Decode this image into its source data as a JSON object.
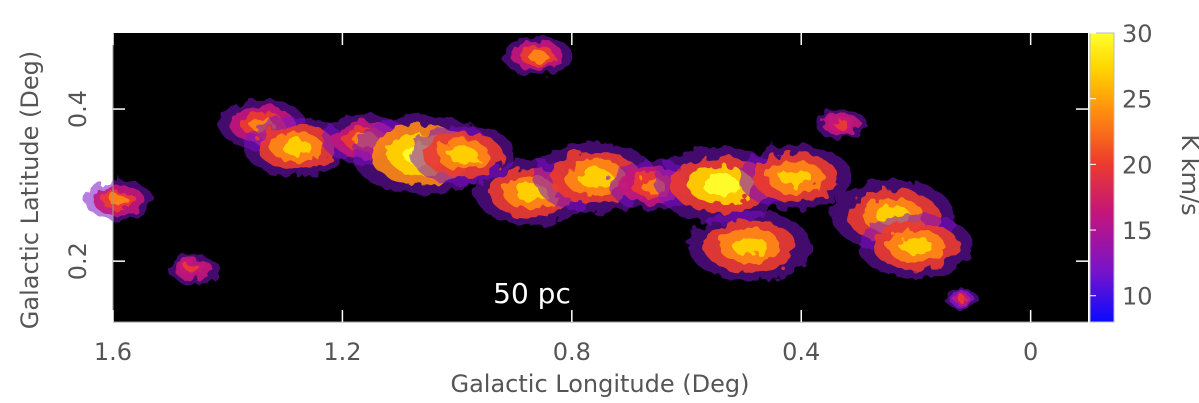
{
  "chart_data": {
    "type": "heatmap",
    "title": "",
    "xlabel": "Galactic Longitude (Deg)",
    "ylabel": "Galactic Latitude (Deg)",
    "xlim": [
      1.6,
      -0.1
    ],
    "ylim": [
      0.12,
      0.5
    ],
    "x_ticks": [
      1.6,
      1.2,
      0.8,
      0.4,
      0
    ],
    "x_tick_labels": [
      "1.6",
      "1.2",
      "0.8",
      "0.4",
      "0"
    ],
    "y_ticks": [
      0.2,
      0.4
    ],
    "y_tick_labels": [
      "0.2",
      "0.4"
    ],
    "colorbar": {
      "label": "K km/s",
      "range": [
        8,
        30
      ],
      "ticks": [
        10,
        15,
        20,
        25,
        30
      ],
      "tick_labels": [
        "10",
        "15",
        "20",
        "25",
        "30"
      ],
      "colormap": [
        "#0a0aff",
        "#7a14c8",
        "#c4157a",
        "#ec3c2c",
        "#ff8a10",
        "#ffd600",
        "#ffff30"
      ]
    },
    "annotation": "50 pc",
    "background_color": "#000000",
    "emission_regions": [
      {
        "l": 1.59,
        "b": 0.28,
        "peak": 22
      },
      {
        "l": 1.46,
        "b": 0.19,
        "peak": 20
      },
      {
        "l": 1.34,
        "b": 0.38,
        "peak": 24
      },
      {
        "l": 1.28,
        "b": 0.35,
        "peak": 26
      },
      {
        "l": 1.16,
        "b": 0.36,
        "peak": 24
      },
      {
        "l": 1.06,
        "b": 0.34,
        "peak": 30
      },
      {
        "l": 0.99,
        "b": 0.34,
        "peak": 26
      },
      {
        "l": 0.87,
        "b": 0.29,
        "peak": 27
      },
      {
        "l": 0.76,
        "b": 0.31,
        "peak": 28
      },
      {
        "l": 0.66,
        "b": 0.3,
        "peak": 24
      },
      {
        "l": 0.54,
        "b": 0.3,
        "peak": 29
      },
      {
        "l": 0.49,
        "b": 0.22,
        "peak": 28
      },
      {
        "l": 0.41,
        "b": 0.31,
        "peak": 27
      },
      {
        "l": 0.33,
        "b": 0.38,
        "peak": 20
      },
      {
        "l": 0.24,
        "b": 0.26,
        "peak": 28
      },
      {
        "l": 0.2,
        "b": 0.22,
        "peak": 27
      },
      {
        "l": 0.12,
        "b": 0.15,
        "peak": 18
      },
      {
        "l": 0.86,
        "b": 0.47,
        "peak": 22
      }
    ]
  }
}
